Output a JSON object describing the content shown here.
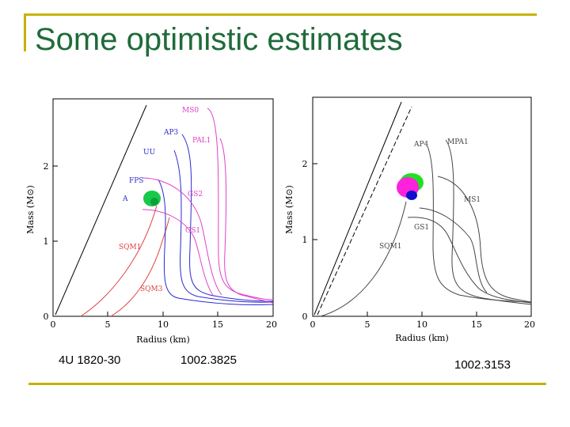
{
  "slide": {
    "title": "Some optimistic estimates",
    "captions": [
      "4U 1820-30",
      "1002.3825",
      "1002.3153"
    ]
  },
  "chart_data": [
    {
      "type": "line",
      "xlabel": "Radius (km)",
      "ylabel": "Mass (M⊙)",
      "xlim": [
        0,
        20
      ],
      "ylim": [
        0,
        3
      ],
      "xticks": [
        "0",
        "5",
        "10",
        "15",
        "20"
      ],
      "yticks": [
        "0",
        "1",
        "2"
      ],
      "curve_labels": [
        "MS0",
        "AP3",
        "PAL1",
        "UU",
        "FPS",
        "GS2",
        "A",
        "GS1",
        "SQM1",
        "SQM3"
      ],
      "colors": {
        "red": "#e04040",
        "blue": "#2a2ad0",
        "magenta": "#e040c8",
        "black": "#000000",
        "green": "#18c84a"
      }
    },
    {
      "type": "line",
      "xlabel": "Radius (km)",
      "ylabel": "Mass (M⊙)",
      "xlim": [
        0,
        20
      ],
      "ylim": [
        0,
        3
      ],
      "xticks": [
        "0",
        "5",
        "10",
        "15",
        "20"
      ],
      "yticks": [
        "0",
        "1",
        "2"
      ],
      "curve_labels": [
        "AP4",
        "MPA1",
        "MS1",
        "GS1",
        "SQM1"
      ],
      "colors": {
        "black": "#444444",
        "green": "#22e020",
        "magenta": "#ff22dd",
        "blue": "#1010cc"
      }
    }
  ]
}
